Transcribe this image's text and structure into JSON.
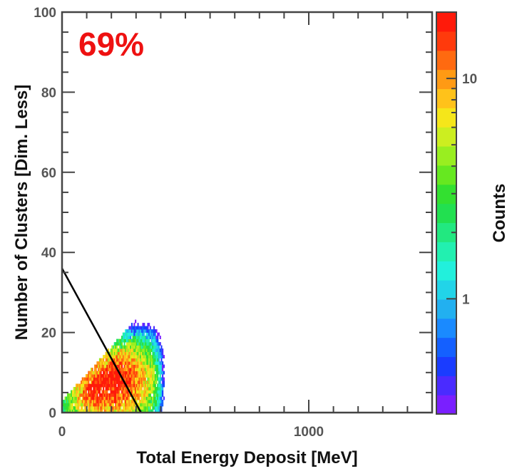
{
  "chart_data": {
    "type": "heatmap",
    "xlabel": "Total Energy Deposit [MeV]",
    "ylabel": "Number of Clusters [Dim. Less]",
    "xlim": [
      0,
      1500
    ],
    "ylim": [
      0,
      100
    ],
    "x_ticks": [
      {
        "value": 0,
        "label": "0"
      },
      {
        "value": 1000,
        "label": "1000"
      }
    ],
    "x_minor_step": 100,
    "y_ticks": [
      {
        "value": 0,
        "label": "0"
      },
      {
        "value": 20,
        "label": "20"
      },
      {
        "value": 40,
        "label": "40"
      },
      {
        "value": 60,
        "label": "60"
      },
      {
        "value": 80,
        "label": "80"
      },
      {
        "value": 100,
        "label": "100"
      }
    ],
    "y_minor_step": 5,
    "annotation": {
      "text": "69%",
      "color": "#ee1111"
    },
    "cut_line": {
      "x": [
        0,
        320
      ],
      "y": [
        36,
        0
      ],
      "color": "#000000"
    },
    "density_peak": {
      "x": 180,
      "y": 8,
      "max_counts": 20
    },
    "colorbar": {
      "label": "Counts",
      "scale": "log",
      "range": [
        0.3,
        20
      ],
      "ticks": [
        {
          "value": 1,
          "label": "1"
        },
        {
          "value": 10,
          "label": "10"
        }
      ],
      "colors": [
        "#7a1fff",
        "#4a2bff",
        "#1a3cff",
        "#1460ff",
        "#1a8aff",
        "#22b0f0",
        "#22d4e8",
        "#22f0dc",
        "#22f0b0",
        "#22e880",
        "#22e050",
        "#33e030",
        "#66e820",
        "#99ee20",
        "#ccee20",
        "#f5e61a",
        "#ffc21a",
        "#ff9a14",
        "#ff6a10",
        "#ff3a0c",
        "#ff1a0a"
      ]
    }
  }
}
